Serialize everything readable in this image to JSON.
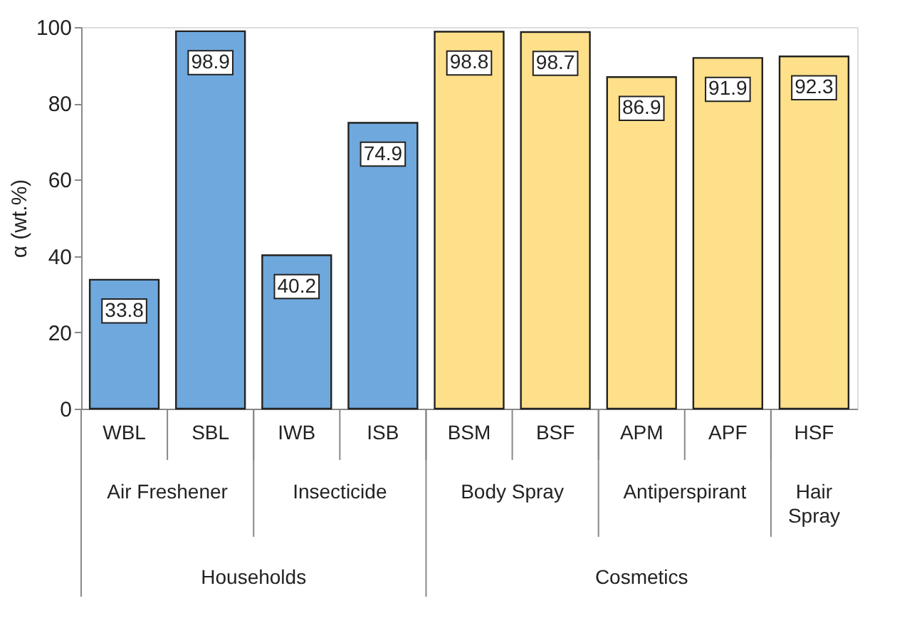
{
  "chart_data": {
    "type": "bar",
    "ylabel": "α (wt.%)",
    "categories": [
      "WBL",
      "SBL",
      "IWB",
      "ISB",
      "BSM",
      "BSF",
      "APM",
      "APF",
      "HSF"
    ],
    "values": [
      33.8,
      98.9,
      40.2,
      74.9,
      98.8,
      98.7,
      86.9,
      91.9,
      92.3
    ],
    "colors": [
      "#6fa8dc",
      "#6fa8dc",
      "#6fa8dc",
      "#6fa8dc",
      "#ffe08a",
      "#ffe08a",
      "#ffe08a",
      "#ffe08a",
      "#ffe08a"
    ],
    "ylim": [
      0,
      100
    ],
    "yticks": [
      0,
      20,
      40,
      60,
      80,
      100
    ],
    "data_labels": true,
    "grid": false,
    "annotations": [
      "Air Freshener",
      "Insecticide",
      "Body Spray",
      "Antiperspirant",
      "Hair\nSpray",
      "Households",
      "Cosmetics"
    ]
  }
}
